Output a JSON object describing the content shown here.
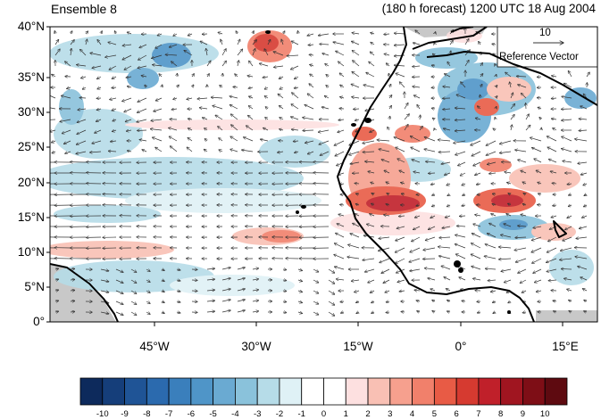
{
  "header": {
    "ensemble": "Ensemble 8",
    "forecast": "(180 h forecast) 1200 UTC 18 Aug 2004"
  },
  "map": {
    "lat_ticks": [
      "0°",
      "5°N",
      "10°N",
      "15°N",
      "20°N",
      "25°N",
      "30°N",
      "35°N",
      "40°N"
    ],
    "lon_ticks": [
      "45°W",
      "30°W",
      "15°W",
      "0°",
      "15°E"
    ],
    "reference_vector": {
      "magnitude": "10",
      "label": "Reference Vector"
    }
  },
  "colorbar": {
    "labels": [
      "-10",
      "-9",
      "-8",
      "-7",
      "-6",
      "-5",
      "-4",
      "-3",
      "-2",
      "-1",
      "0",
      "1",
      "2",
      "3",
      "4",
      "5",
      "6",
      "7",
      "8",
      "9",
      "10"
    ],
    "colors": [
      "#0d2a5c",
      "#153e7a",
      "#1f5496",
      "#2b6aae",
      "#3a7fbc",
      "#4f95c8",
      "#6aaad2",
      "#8ac2db",
      "#b6dce8",
      "#dff1f6",
      "#ffffff",
      "#ffffff",
      "#fde0e0",
      "#f9c0b4",
      "#f6a08e",
      "#f1806b",
      "#e85b45",
      "#d63a30",
      "#c0202a",
      "#a01520",
      "#7e0e16",
      "#5e0a10"
    ]
  }
}
